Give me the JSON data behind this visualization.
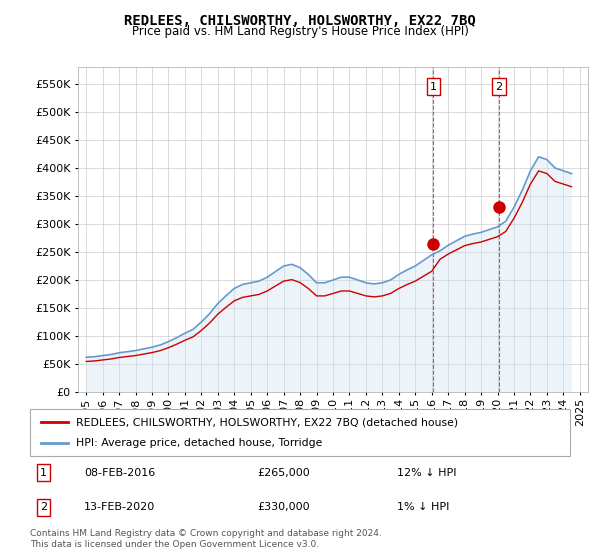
{
  "title": "REDLEES, CHILSWORTHY, HOLSWORTHY, EX22 7BQ",
  "subtitle": "Price paid vs. HM Land Registry's House Price Index (HPI)",
  "ylabel_ticks": [
    "£0",
    "£50K",
    "£100K",
    "£150K",
    "£200K",
    "£250K",
    "£300K",
    "£350K",
    "£400K",
    "£450K",
    "£500K",
    "£550K"
  ],
  "ytick_values": [
    0,
    50000,
    100000,
    150000,
    200000,
    250000,
    300000,
    350000,
    400000,
    450000,
    500000,
    550000
  ],
  "ylim": [
    0,
    580000
  ],
  "xlim_start": 1994.5,
  "xlim_end": 2025.5,
  "marker1_x": 2016.1,
  "marker1_y": 265000,
  "marker1_label": "1",
  "marker2_x": 2020.1,
  "marker2_y": 330000,
  "marker2_label": "2",
  "vline1_x": 2016.1,
  "vline2_x": 2020.1,
  "sale_color": "#cc0000",
  "hpi_color": "#6699cc",
  "hpi_fill_color": "#cce0f0",
  "legend_entries": [
    "REDLEES, CHILSWORTHY, HOLSWORTHY, EX22 7BQ (detached house)",
    "HPI: Average price, detached house, Torridge"
  ],
  "table_rows": [
    [
      "1",
      "08-FEB-2016",
      "£265,000",
      "12% ↓ HPI"
    ],
    [
      "2",
      "13-FEB-2020",
      "£330,000",
      "1% ↓ HPI"
    ]
  ],
  "footnote": "Contains HM Land Registry data © Crown copyright and database right 2024.\nThis data is licensed under the Open Government Licence v3.0.",
  "hpi_years": [
    1995,
    1995.5,
    1996,
    1996.5,
    1997,
    1997.5,
    1998,
    1998.5,
    1999,
    1999.5,
    2000,
    2000.5,
    2001,
    2001.5,
    2002,
    2002.5,
    2003,
    2003.5,
    2004,
    2004.5,
    2005,
    2005.5,
    2006,
    2006.5,
    2007,
    2007.5,
    2008,
    2008.5,
    2009,
    2009.5,
    2010,
    2010.5,
    2011,
    2011.5,
    2012,
    2012.5,
    2013,
    2013.5,
    2014,
    2014.5,
    2015,
    2015.5,
    2016,
    2016.5,
    2017,
    2017.5,
    2018,
    2018.5,
    2019,
    2019.5,
    2020,
    2020.5,
    2021,
    2021.5,
    2022,
    2022.5,
    2023,
    2023.5,
    2024,
    2024.5
  ],
  "hpi_values": [
    62000,
    63000,
    65000,
    67000,
    70000,
    72000,
    74000,
    77000,
    80000,
    84000,
    90000,
    97000,
    105000,
    112000,
    125000,
    140000,
    158000,
    172000,
    185000,
    192000,
    195000,
    198000,
    205000,
    215000,
    225000,
    228000,
    222000,
    210000,
    195000,
    195000,
    200000,
    205000,
    205000,
    200000,
    195000,
    193000,
    195000,
    200000,
    210000,
    218000,
    225000,
    235000,
    245000,
    252000,
    262000,
    270000,
    278000,
    282000,
    285000,
    290000,
    295000,
    305000,
    330000,
    360000,
    395000,
    420000,
    415000,
    400000,
    395000,
    390000
  ],
  "sale_years": [
    1995.5,
    2016.1,
    2020.1
  ],
  "sale_values": [
    52000,
    265000,
    330000
  ],
  "background_color": "#ffffff",
  "grid_color": "#cccccc"
}
